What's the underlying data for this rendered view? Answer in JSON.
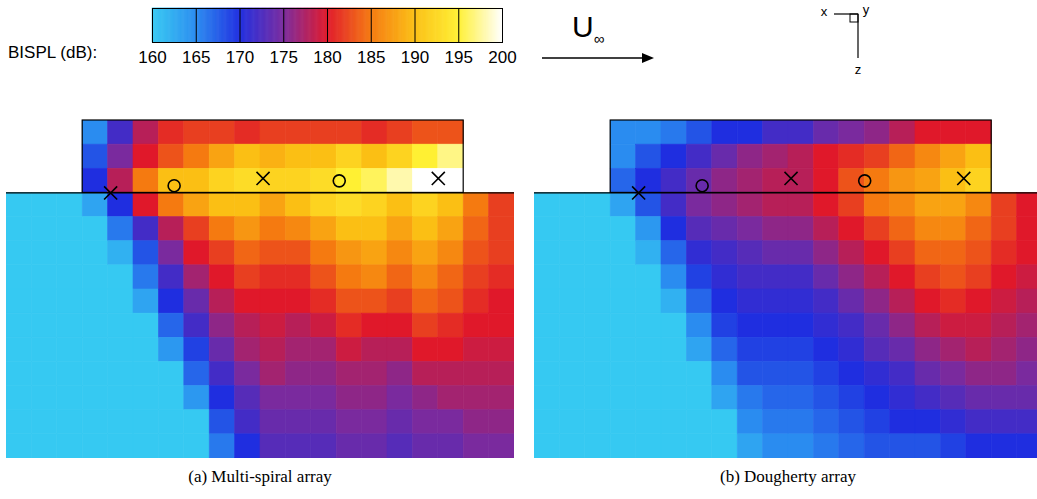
{
  "chart_data": {
    "type": "heatmap",
    "colorbar": {
      "label": "BISPL (dB):",
      "range": [
        160,
        200
      ],
      "ticks": [
        160,
        165,
        170,
        175,
        180,
        185,
        190,
        195,
        200
      ],
      "colors": [
        "#36c9f2",
        "#2a8cf0",
        "#1f2ee0",
        "#7a2a9e",
        "#e0182a",
        "#f57a10",
        "#fbbf14",
        "#fff033",
        "#ffffff"
      ]
    },
    "flow_label": "U∞",
    "axes_labels": [
      "x",
      "y",
      "z"
    ],
    "panels": [
      {
        "title": "(a) Multi-spiral array",
        "cells": [
          [
            null,
            null,
            null,
            165,
            172,
            178,
            181,
            182,
            182,
            181,
            182,
            182,
            182,
            182,
            181,
            182,
            183,
            183,
            null,
            null
          ],
          [
            null,
            null,
            null,
            168,
            175,
            180,
            183,
            185,
            188,
            190,
            189,
            190,
            190,
            192,
            190,
            192,
            195,
            197,
            null,
            null
          ],
          [
            null,
            null,
            null,
            170,
            178,
            185,
            190,
            190,
            192,
            193,
            192,
            192,
            193,
            195,
            196,
            198,
            200,
            200,
            null,
            null
          ],
          [
            160,
            160,
            160,
            163,
            170,
            180,
            185,
            188,
            190,
            190,
            188,
            190,
            192,
            193,
            192,
            190,
            192,
            190,
            185,
            182
          ],
          [
            160,
            160,
            160,
            160,
            166,
            172,
            178,
            182,
            185,
            187,
            185,
            186,
            188,
            190,
            190,
            188,
            190,
            188,
            184,
            182
          ],
          [
            160,
            160,
            160,
            160,
            162,
            168,
            175,
            180,
            182,
            184,
            183,
            183,
            185,
            187,
            188,
            186,
            188,
            186,
            183,
            182
          ],
          [
            160,
            160,
            160,
            160,
            160,
            166,
            172,
            177,
            180,
            182,
            181,
            181,
            183,
            185,
            186,
            184,
            186,
            184,
            182,
            181
          ],
          [
            160,
            160,
            160,
            160,
            160,
            163,
            170,
            174,
            178,
            180,
            180,
            180,
            181,
            183,
            183,
            182,
            184,
            183,
            181,
            180
          ],
          [
            160,
            160,
            160,
            160,
            160,
            160,
            167,
            172,
            176,
            178,
            179,
            178,
            179,
            181,
            180,
            180,
            182,
            181,
            180,
            180
          ],
          [
            160,
            160,
            160,
            160,
            160,
            160,
            164,
            169,
            174,
            177,
            178,
            177,
            177,
            179,
            178,
            178,
            180,
            180,
            179,
            179
          ],
          [
            160,
            160,
            160,
            160,
            160,
            160,
            160,
            167,
            172,
            175,
            177,
            176,
            176,
            177,
            177,
            176,
            178,
            178,
            178,
            178
          ],
          [
            160,
            160,
            160,
            160,
            160,
            160,
            160,
            164,
            170,
            173,
            175,
            175,
            175,
            176,
            176,
            175,
            176,
            177,
            177,
            177
          ],
          [
            160,
            160,
            160,
            160,
            160,
            160,
            160,
            160,
            168,
            172,
            174,
            174,
            174,
            175,
            175,
            174,
            175,
            175,
            176,
            176
          ],
          [
            160,
            160,
            160,
            160,
            160,
            160,
            160,
            160,
            166,
            170,
            173,
            173,
            173,
            174,
            174,
            173,
            174,
            174,
            175,
            175
          ]
        ],
        "markers": [
          {
            "x": 4.1,
            "z": 3.0,
            "marker": "x"
          },
          {
            "x": 6.6,
            "z": 2.7,
            "marker": "o"
          },
          {
            "x": 10.1,
            "z": 2.4,
            "marker": "x"
          },
          {
            "x": 13.1,
            "z": 2.5,
            "marker": "o"
          },
          {
            "x": 17.0,
            "z": 2.4,
            "marker": "x"
          }
        ]
      },
      {
        "title": "(b) Dougherty array",
        "cells": [
          [
            null,
            null,
            null,
            165,
            165,
            166,
            168,
            170,
            170,
            172,
            172,
            174,
            175,
            176,
            178,
            180,
            180,
            180,
            null,
            null
          ],
          [
            null,
            null,
            null,
            165,
            168,
            170,
            172,
            174,
            176,
            177,
            178,
            180,
            181,
            182,
            184,
            186,
            188,
            190,
            null,
            null
          ],
          [
            null,
            null,
            null,
            167,
            170,
            172,
            174,
            176,
            177,
            178,
            178,
            180,
            183,
            185,
            187,
            188,
            190,
            192,
            null,
            null
          ],
          [
            160,
            160,
            160,
            163,
            168,
            172,
            175,
            176,
            177,
            178,
            178,
            180,
            182,
            185,
            186,
            188,
            188,
            186,
            182,
            180
          ],
          [
            160,
            160,
            160,
            160,
            164,
            170,
            173,
            174,
            175,
            176,
            176,
            178,
            180,
            182,
            184,
            186,
            186,
            184,
            182,
            180
          ],
          [
            160,
            160,
            160,
            160,
            162,
            167,
            171,
            172,
            173,
            174,
            174,
            176,
            178,
            180,
            182,
            184,
            184,
            183,
            181,
            180
          ],
          [
            160,
            160,
            160,
            160,
            160,
            165,
            169,
            171,
            172,
            172,
            172,
            174,
            176,
            178,
            180,
            182,
            183,
            182,
            180,
            179
          ],
          [
            160,
            160,
            160,
            160,
            160,
            162,
            167,
            170,
            171,
            171,
            171,
            172,
            174,
            176,
            178,
            180,
            181,
            180,
            179,
            178
          ],
          [
            160,
            160,
            160,
            160,
            160,
            160,
            165,
            169,
            170,
            170,
            170,
            171,
            172,
            174,
            176,
            178,
            179,
            179,
            178,
            177
          ],
          [
            160,
            160,
            160,
            160,
            160,
            160,
            163,
            167,
            169,
            169,
            169,
            170,
            171,
            173,
            174,
            176,
            177,
            178,
            177,
            176
          ],
          [
            160,
            160,
            160,
            160,
            160,
            160,
            160,
            165,
            168,
            168,
            168,
            169,
            170,
            171,
            172,
            174,
            175,
            176,
            176,
            175
          ],
          [
            160,
            160,
            160,
            160,
            160,
            160,
            160,
            163,
            166,
            167,
            167,
            168,
            169,
            170,
            171,
            172,
            173,
            174,
            174,
            174
          ],
          [
            160,
            160,
            160,
            160,
            160,
            160,
            160,
            160,
            165,
            166,
            166,
            167,
            168,
            169,
            170,
            170,
            171,
            172,
            172,
            172
          ],
          [
            160,
            160,
            160,
            160,
            160,
            160,
            160,
            160,
            163,
            165,
            165,
            166,
            167,
            168,
            168,
            168,
            169,
            170,
            170,
            170
          ]
        ],
        "markers": [
          {
            "x": 4.1,
            "z": 3.0,
            "marker": "x"
          },
          {
            "x": 6.6,
            "z": 2.7,
            "marker": "o"
          },
          {
            "x": 10.1,
            "z": 2.4,
            "marker": "x"
          },
          {
            "x": 13.0,
            "z": 2.5,
            "marker": "o"
          },
          {
            "x": 16.9,
            "z": 2.4,
            "marker": "x"
          }
        ]
      }
    ]
  }
}
